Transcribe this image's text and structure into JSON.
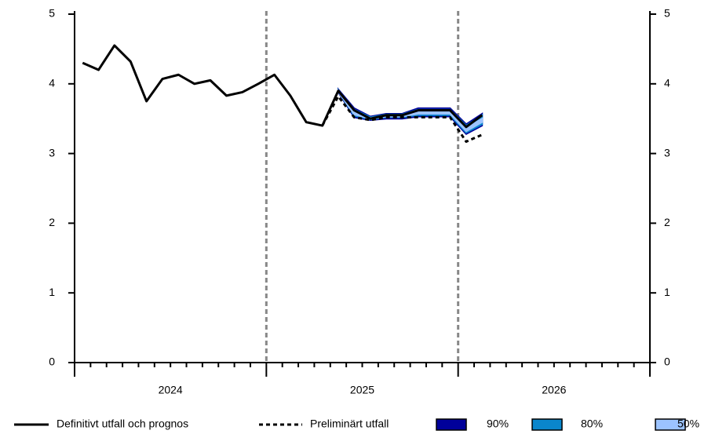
{
  "chart_data": {
    "type": "line",
    "xlim": [
      2024,
      2027
    ],
    "xticks": [
      {
        "value": 2024.5,
        "label": "2024"
      },
      {
        "value": 2025.5,
        "label": "2025"
      },
      {
        "value": 2026.5,
        "label": "2026"
      }
    ],
    "vlines": [
      2025,
      2026
    ],
    "ylim": [
      0,
      5
    ],
    "yticks": [
      0,
      1,
      2,
      3,
      4,
      5
    ],
    "y2lim": [
      0,
      5
    ],
    "y2ticks": [
      0,
      1,
      2,
      3,
      4,
      5
    ],
    "grid": false,
    "legend": "bottom",
    "series": [
      {
        "name": "Definitivt utfall och prognos",
        "color": "#000000",
        "dash": false,
        "x": [
          2024.042,
          2024.125,
          2024.208,
          2024.292,
          2024.375,
          2024.458,
          2024.542,
          2024.625,
          2024.708,
          2024.792,
          2024.875,
          2024.958,
          2025.042,
          2025.125,
          2025.208,
          2025.292,
          2025.375,
          2025.458,
          2025.542,
          2025.625,
          2025.708,
          2025.792,
          2025.875,
          2025.958,
          2026.042,
          2026.125
        ],
        "values": [
          4.3,
          4.2,
          4.55,
          4.32,
          3.75,
          4.07,
          4.13,
          4.0,
          4.05,
          3.83,
          3.88,
          4.0,
          4.13,
          3.83,
          3.45,
          3.4,
          3.9,
          3.62,
          3.5,
          3.55,
          3.55,
          3.62,
          3.62,
          3.62,
          3.38,
          3.55
        ]
      },
      {
        "name": "Preliminärt utfall",
        "color": "#000000",
        "dash": true,
        "x": [
          2025.292,
          2025.375,
          2025.458,
          2025.542,
          2025.625,
          2025.708,
          2025.792,
          2025.875,
          2025.958,
          2026.042,
          2026.125
        ],
        "values": [
          3.4,
          3.82,
          3.52,
          3.48,
          3.52,
          3.52,
          3.52,
          3.52,
          3.52,
          3.17,
          3.27
        ]
      }
    ],
    "bands": [
      {
        "name": "90%",
        "color": "#00009a",
        "x": [
          2025.375,
          2025.458,
          2025.542,
          2025.625,
          2025.708,
          2025.792,
          2025.875,
          2025.958,
          2026.042,
          2026.125
        ],
        "lower": [
          3.88,
          3.52,
          3.48,
          3.5,
          3.5,
          3.53,
          3.53,
          3.53,
          3.28,
          3.4
        ],
        "upper": [
          3.92,
          3.65,
          3.53,
          3.57,
          3.57,
          3.65,
          3.65,
          3.65,
          3.42,
          3.57
        ]
      },
      {
        "name": "80%",
        "color": "#0a86cc",
        "x": [
          2025.375,
          2025.458,
          2025.542,
          2025.625,
          2025.708,
          2025.792,
          2025.875,
          2025.958,
          2026.042,
          2026.125
        ],
        "lower": [
          3.89,
          3.54,
          3.49,
          3.52,
          3.52,
          3.55,
          3.55,
          3.55,
          3.3,
          3.42
        ],
        "upper": [
          3.91,
          3.63,
          3.52,
          3.56,
          3.56,
          3.63,
          3.63,
          3.63,
          3.4,
          3.55
        ]
      },
      {
        "name": "50%",
        "color": "#9cc3ff",
        "x": [
          2025.375,
          2025.458,
          2025.542,
          2025.625,
          2025.708,
          2025.792,
          2025.875,
          2025.958,
          2026.042,
          2026.125
        ],
        "lower": [
          3.89,
          3.56,
          3.5,
          3.53,
          3.53,
          3.57,
          3.57,
          3.57,
          3.32,
          3.45
        ],
        "upper": [
          3.9,
          3.6,
          3.51,
          3.55,
          3.55,
          3.6,
          3.6,
          3.6,
          3.37,
          3.5
        ]
      }
    ]
  }
}
